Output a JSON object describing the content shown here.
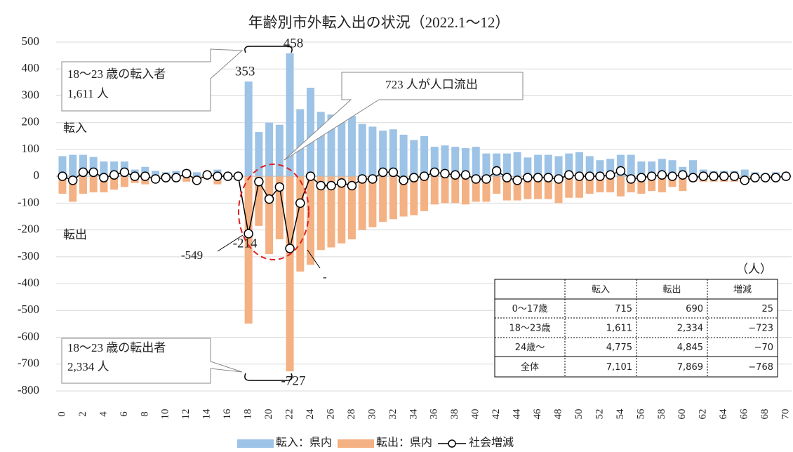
{
  "chart_data": {
    "type": "bar_line",
    "title": "年齢別市外転入出の状況（2022.1〜12）",
    "categories": [
      "0",
      null,
      "2",
      null,
      "4",
      null,
      "6",
      null,
      "8",
      null,
      "10",
      null,
      "12",
      null,
      "14",
      null,
      "16",
      null,
      "18",
      null,
      "20",
      null,
      "22",
      null,
      "24",
      null,
      "26",
      null,
      "28",
      null,
      "30",
      null,
      "32",
      null,
      "34",
      null,
      "36",
      null,
      "38",
      null,
      "40",
      null,
      "42",
      null,
      "44",
      null,
      "46",
      null,
      "48",
      null,
      "50",
      null,
      "52",
      null,
      "54",
      null,
      "56",
      null,
      "58",
      null,
      "60",
      null,
      "62",
      null,
      "64",
      null,
      "66",
      null,
      "68",
      null,
      "70"
    ],
    "series": [
      {
        "name": "転入：県内",
        "color": "#9dc3e6",
        "kind": "bar",
        "values": [
          75,
          80,
          80,
          72,
          55,
          55,
          55,
          25,
          35,
          20,
          15,
          20,
          25,
          15,
          10,
          25,
          10,
          5,
          353,
          165,
          200,
          192,
          458,
          250,
          330,
          240,
          230,
          225,
          225,
          195,
          185,
          170,
          175,
          155,
          135,
          150,
          110,
          115,
          110,
          105,
          110,
          85,
          85,
          85,
          90,
          70,
          80,
          80,
          75,
          85,
          90,
          75,
          60,
          65,
          80,
          80,
          55,
          55,
          65,
          60,
          35,
          60,
          25,
          20,
          20,
          20,
          25,
          15,
          10,
          15,
          10
        ]
      },
      {
        "name": "転出：県内",
        "color": "#f4b183",
        "kind": "bar",
        "values": [
          -65,
          -95,
          -65,
          -60,
          -60,
          -50,
          -40,
          -25,
          -30,
          -20,
          -15,
          -15,
          -20,
          -10,
          -10,
          -30,
          -10,
          -5,
          -549,
          -185,
          -290,
          -235,
          -727,
          -355,
          -330,
          -275,
          -265,
          -250,
          -235,
          -200,
          -190,
          -170,
          -160,
          -150,
          -145,
          -130,
          -105,
          -100,
          -100,
          -105,
          -95,
          -95,
          -65,
          -90,
          -90,
          -85,
          -85,
          -85,
          -100,
          -80,
          -80,
          -65,
          -60,
          -60,
          -75,
          -60,
          -65,
          -55,
          -60,
          -40,
          -55,
          -20,
          -20,
          -20,
          -20,
          -20,
          -25,
          -15,
          -15,
          -10,
          -15
        ]
      },
      {
        "name": "社会増減",
        "color": "#000000",
        "kind": "line",
        "values": [
          0,
          -15,
          15,
          15,
          -5,
          5,
          15,
          0,
          0,
          -10,
          -5,
          -5,
          10,
          -15,
          5,
          0,
          0,
          0,
          -214,
          -20,
          -85,
          -40,
          -269,
          -100,
          0,
          -35,
          -35,
          -25,
          -35,
          -10,
          -10,
          15,
          15,
          -15,
          -5,
          0,
          15,
          10,
          5,
          5,
          -10,
          -10,
          20,
          -5,
          -15,
          -5,
          -5,
          -5,
          -10,
          5,
          0,
          0,
          0,
          5,
          20,
          -10,
          -5,
          0,
          5,
          0,
          5,
          -5,
          0,
          0,
          0,
          0,
          -15,
          -5,
          -5,
          -5,
          0
        ]
      }
    ],
    "labeled_points": [
      [
        0,
        18
      ],
      [
        0,
        22
      ],
      [
        1,
        18
      ],
      [
        1,
        22
      ],
      [
        2,
        18
      ]
    ],
    "ylim": [
      -800,
      500
    ],
    "yticks": [
      500,
      400,
      300,
      200,
      100,
      0,
      -100,
      -200,
      -300,
      -400,
      -500,
      -600,
      -700,
      -800
    ],
    "annotations": [
      "18〜23 歳の転入者",
      "1,611 人",
      "723 人が人口流出",
      "18〜23 歳の転出者",
      "2,334 人",
      "転入",
      "転出",
      "-"
    ],
    "table": {
      "unit": "（人）",
      "header": [
        "",
        "転入",
        "転出",
        "増減"
      ],
      "rows": [
        [
          "0〜17歳",
          "715",
          "690",
          "25"
        ],
        [
          "18〜23歳",
          "1,611",
          "2,334",
          "−723"
        ],
        [
          "24歳〜",
          "4,775",
          "4,845",
          "−70"
        ],
        [
          "全体",
          "7,101",
          "7,869",
          "−768"
        ]
      ]
    }
  }
}
